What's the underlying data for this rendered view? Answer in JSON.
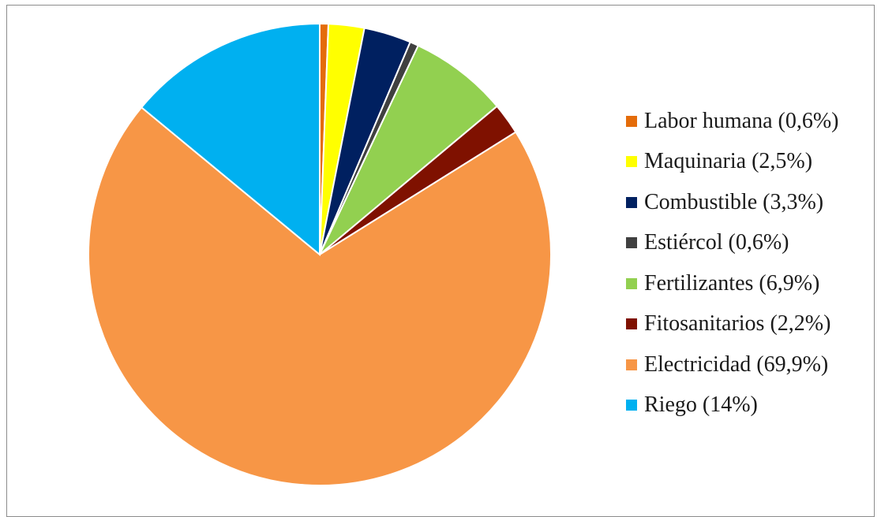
{
  "chart_data": {
    "type": "pie",
    "categories": [
      "Labor humana (0,6%)",
      "Maquinaria (2,5%)",
      "Combustible (3,3%)",
      "Estiércol (0,6%)",
      "Fertilizantes (6,9%)",
      "Fitosanitarios (2,2%)",
      "Electricidad (69,9%)",
      "Riego (14%)"
    ],
    "values": [
      0.6,
      2.5,
      3.3,
      0.6,
      6.9,
      2.2,
      69.9,
      14
    ],
    "colors": [
      "#e46c0a",
      "#ffff00",
      "#002060",
      "#404040",
      "#92d050",
      "#7f1100",
      "#f79646",
      "#00b0f0"
    ],
    "start_angle": "12 o'clock",
    "direction": "clockwise",
    "legend_position": "right"
  }
}
